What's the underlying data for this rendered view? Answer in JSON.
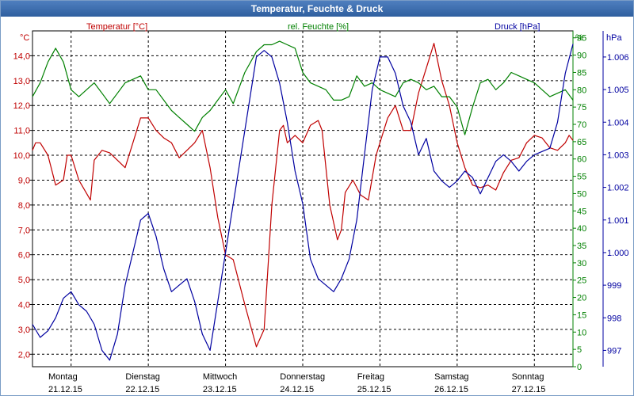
{
  "window": {
    "title": "Temperatur, Feuchte & Druck"
  },
  "chart_data": {
    "type": "line",
    "title": "Temperatur, Feuchte & Druck",
    "grid": true,
    "colors": {
      "temperature": "#c00000",
      "humidity": "#008000",
      "pressure": "#0000a0",
      "grid": "#000000",
      "axis": "#000000"
    },
    "axes": {
      "temperature": {
        "label": "Temperatur [°C]",
        "unit": "°C",
        "min": 1.5,
        "max": 15.0,
        "ticks": [
          "2,0",
          "3,0",
          "4,0",
          "5,0",
          "6,0",
          "7,0",
          "8,0",
          "9,0",
          "10,0",
          "11,0",
          "12,0",
          "13,0",
          "14,0"
        ]
      },
      "humidity": {
        "label": "rel. Feuchte [%]",
        "unit": "%",
        "min": 0,
        "max": 97,
        "ticks": [
          "0",
          "5",
          "10",
          "15",
          "20",
          "25",
          "30",
          "35",
          "40",
          "45",
          "50",
          "55",
          "60",
          "65",
          "70",
          "75",
          "80",
          "85",
          "90",
          "95"
        ]
      },
      "pressure": {
        "label": "Druck [hPa]",
        "unit": "hPa",
        "min": 996.5,
        "max": 1006.8,
        "ticks": [
          "997",
          "998",
          "999",
          "1.000",
          "1.001",
          "1.002",
          "1.003",
          "1.004",
          "1.005",
          "1.006"
        ]
      }
    },
    "x_range_days": [
      0,
      7
    ],
    "x_labels": [
      {
        "day": "Montag",
        "date": "21.12.15"
      },
      {
        "day": "Dienstag",
        "date": "22.12.15"
      },
      {
        "day": "Mittwoch",
        "date": "23.12.15"
      },
      {
        "day": "Donnerstag",
        "date": "24.12.15"
      },
      {
        "day": "Freitag",
        "date": "25.12.15"
      },
      {
        "day": "Samstag",
        "date": "26.12.15"
      },
      {
        "day": "Sonntag",
        "date": "27.12.15"
      }
    ],
    "series": [
      {
        "name": "Temperatur",
        "key": "temperature",
        "x": [
          0,
          0.04,
          0.1,
          0.2,
          0.3,
          0.4,
          0.45,
          0.5,
          0.6,
          0.75,
          0.8,
          0.85,
          0.9,
          1.0,
          1.1,
          1.2,
          1.3,
          1.4,
          1.5,
          1.6,
          1.7,
          1.8,
          1.9,
          2.0,
          2.1,
          2.2,
          2.3,
          2.4,
          2.5,
          2.6,
          2.75,
          2.9,
          3.0,
          3.1,
          3.2,
          3.25,
          3.3,
          3.4,
          3.5,
          3.6,
          3.7,
          3.75,
          3.85,
          3.95,
          4.0,
          4.05,
          4.15,
          4.25,
          4.35,
          4.45,
          4.5,
          4.6,
          4.7,
          4.8,
          4.9,
          5.0,
          5.1,
          5.2,
          5.3,
          5.4,
          5.5,
          5.6,
          5.7,
          5.8,
          5.9,
          6.0,
          6.1,
          6.2,
          6.3,
          6.4,
          6.5,
          6.6,
          6.7,
          6.8,
          6.9,
          6.95,
          7.0
        ],
        "values": [
          10.2,
          10.5,
          10.5,
          10.0,
          8.8,
          9.0,
          10.0,
          10.0,
          9.0,
          8.2,
          9.8,
          10.0,
          10.2,
          10.1,
          9.8,
          9.5,
          10.5,
          11.5,
          11.5,
          11.0,
          10.7,
          10.5,
          9.9,
          10.2,
          10.5,
          11.0,
          9.5,
          7.5,
          6.0,
          5.8,
          4.0,
          2.3,
          3.0,
          8.0,
          11.0,
          11.2,
          10.5,
          10.8,
          10.5,
          11.2,
          11.4,
          11.0,
          8.0,
          6.6,
          7.0,
          8.5,
          9.0,
          8.4,
          8.2,
          10.0,
          10.5,
          11.5,
          12.0,
          11.0,
          11.0,
          12.5,
          13.5,
          14.5,
          13.0,
          12.0,
          10.5,
          9.5,
          8.8,
          8.7,
          8.8,
          8.6,
          9.3,
          9.8,
          9.9,
          10.5,
          10.8,
          10.7,
          10.3,
          10.2,
          10.5,
          10.8,
          10.6
        ]
      },
      {
        "name": "rel. Feuchte",
        "key": "humidity",
        "x": [
          0,
          0.1,
          0.2,
          0.3,
          0.4,
          0.5,
          0.6,
          0.7,
          0.8,
          0.9,
          1.0,
          1.1,
          1.2,
          1.3,
          1.4,
          1.5,
          1.6,
          1.7,
          1.8,
          1.9,
          2.0,
          2.1,
          2.2,
          2.3,
          2.4,
          2.5,
          2.6,
          2.75,
          2.9,
          3.0,
          3.1,
          3.2,
          3.3,
          3.4,
          3.5,
          3.6,
          3.7,
          3.8,
          3.9,
          4.0,
          4.1,
          4.2,
          4.3,
          4.4,
          4.5,
          4.6,
          4.7,
          4.8,
          4.9,
          5.0,
          5.1,
          5.2,
          5.3,
          5.4,
          5.5,
          5.6,
          5.7,
          5.8,
          5.9,
          6.0,
          6.1,
          6.2,
          6.3,
          6.4,
          6.5,
          6.6,
          6.7,
          6.8,
          6.9,
          7.0
        ],
        "values": [
          78,
          82,
          88,
          92,
          88,
          80,
          78,
          80,
          82,
          79,
          76,
          79,
          82,
          83,
          84,
          80,
          80,
          77,
          74,
          72,
          70,
          68,
          72,
          74,
          77,
          80,
          76,
          85,
          91,
          93,
          93,
          94,
          93,
          92,
          85,
          82,
          81,
          80,
          77,
          77,
          78,
          84,
          81,
          82,
          80,
          79,
          78,
          82,
          83,
          82,
          80,
          81,
          78,
          78,
          75,
          67,
          75,
          82,
          83,
          80,
          82,
          85,
          84,
          83,
          82,
          80,
          78,
          79,
          80,
          77
        ]
      },
      {
        "name": "Druck",
        "key": "pressure",
        "x": [
          0,
          0.1,
          0.2,
          0.3,
          0.4,
          0.5,
          0.6,
          0.7,
          0.8,
          0.9,
          1.0,
          1.1,
          1.2,
          1.3,
          1.4,
          1.5,
          1.6,
          1.7,
          1.8,
          1.9,
          2.0,
          2.1,
          2.2,
          2.3,
          2.4,
          2.5,
          2.6,
          2.7,
          2.8,
          2.9,
          3.0,
          3.1,
          3.2,
          3.3,
          3.4,
          3.5,
          3.6,
          3.7,
          3.8,
          3.9,
          4.0,
          4.1,
          4.2,
          4.3,
          4.4,
          4.5,
          4.6,
          4.7,
          4.8,
          4.9,
          5.0,
          5.1,
          5.2,
          5.3,
          5.4,
          5.5,
          5.6,
          5.7,
          5.8,
          5.9,
          6.0,
          6.1,
          6.2,
          6.3,
          6.4,
          6.5,
          6.6,
          6.7,
          6.8,
          6.9,
          7.0
        ],
        "values": [
          997.8,
          997.4,
          997.6,
          998.0,
          998.6,
          998.8,
          998.4,
          998.2,
          997.8,
          997.0,
          996.7,
          997.5,
          999.0,
          1000.0,
          1001.0,
          1001.2,
          1000.5,
          999.5,
          998.8,
          999.0,
          999.2,
          998.5,
          997.5,
          997.0,
          998.5,
          1000.0,
          1001.5,
          1003.0,
          1004.5,
          1006.0,
          1006.2,
          1006.0,
          1005.2,
          1004.0,
          1002.5,
          1001.5,
          999.8,
          999.2,
          999.0,
          998.8,
          999.2,
          999.8,
          1001.0,
          1003.0,
          1005.0,
          1006.0,
          1006.0,
          1005.5,
          1004.5,
          1004.0,
          1003.0,
          1003.5,
          1002.5,
          1002.2,
          1002.0,
          1002.2,
          1002.5,
          1002.3,
          1001.8,
          1002.3,
          1002.8,
          1003.0,
          1002.8,
          1002.5,
          1002.8,
          1003.0,
          1003.1,
          1003.2,
          1004.0,
          1005.5,
          1006.4
        ]
      }
    ]
  }
}
